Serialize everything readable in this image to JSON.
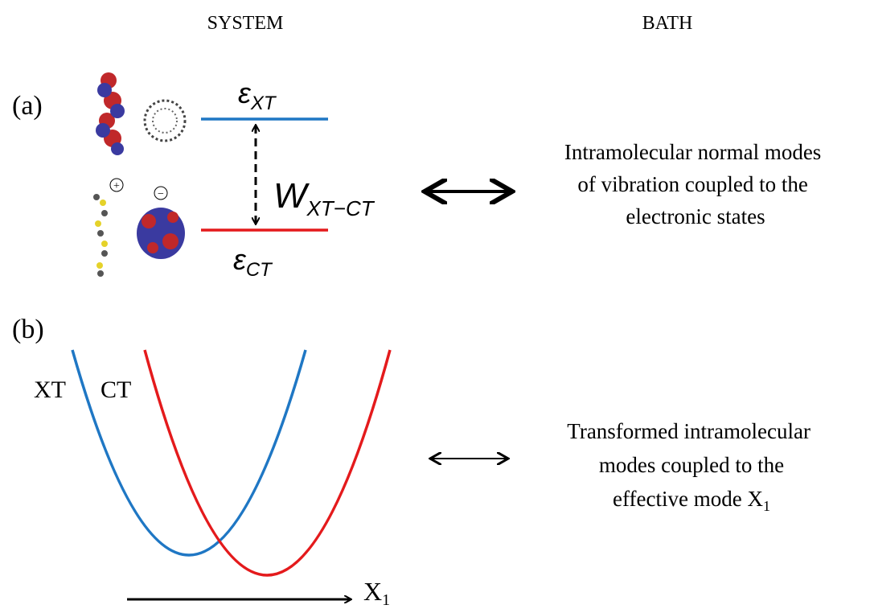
{
  "header": {
    "system": "SYSTEM",
    "bath": "BATH"
  },
  "panel_a": {
    "label": "(a)",
    "level_xt": {
      "symbol": "ε",
      "subscript": "XT"
    },
    "coupling": {
      "symbol": "W",
      "subscript": "XT−CT"
    },
    "level_ct": {
      "symbol": "ε",
      "subscript": "CT"
    },
    "bath_text": [
      "Intramolecular normal modes",
      "of vibration coupled to the",
      "electronic states"
    ]
  },
  "panel_b": {
    "label": "(b)",
    "curve_xt": "XT",
    "curve_ct": "CT",
    "axis": {
      "symbol": "X",
      "subscript": "1"
    },
    "bath_text": [
      "Transformed intramolecular",
      "modes coupled to the"
    ],
    "bath_last": {
      "text": "effective mode X",
      "subscript": "1"
    }
  }
}
